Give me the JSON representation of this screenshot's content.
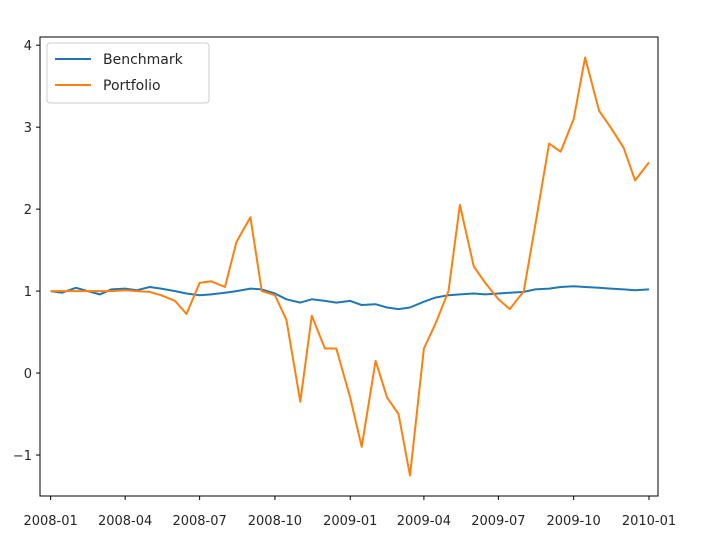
{
  "chart_data": {
    "type": "line",
    "title": "",
    "xlabel": "",
    "ylabel": "",
    "xlim": [
      "2007-12-19",
      "2010-01-12"
    ],
    "ylim": [
      -1.5,
      4.1
    ],
    "grid": false,
    "legend_position": "top-left",
    "x_tick_labels": [
      "2008-01",
      "2008-04",
      "2008-07",
      "2008-10",
      "2009-01",
      "2009-04",
      "2009-07",
      "2009-10",
      "2010-01"
    ],
    "x_tick_dates": [
      "2008-01-01",
      "2008-04-01",
      "2008-07-01",
      "2008-10-01",
      "2009-01-01",
      "2009-04-01",
      "2009-07-01",
      "2009-10-01",
      "2010-01-01"
    ],
    "y_tick_labels": [
      "−1",
      "0",
      "1",
      "2",
      "3",
      "4"
    ],
    "y_tick_values": [
      -1,
      0,
      1,
      2,
      3,
      4
    ],
    "x": [
      "2008-01-01",
      "2008-01-15",
      "2008-02-01",
      "2008-02-15",
      "2008-03-01",
      "2008-03-15",
      "2008-04-01",
      "2008-04-15",
      "2008-05-01",
      "2008-05-15",
      "2008-06-01",
      "2008-06-15",
      "2008-07-01",
      "2008-07-15",
      "2008-08-01",
      "2008-08-15",
      "2008-09-01",
      "2008-09-15",
      "2008-10-01",
      "2008-10-15",
      "2008-11-01",
      "2008-11-15",
      "2008-12-01",
      "2008-12-15",
      "2009-01-01",
      "2009-01-15",
      "2009-02-01",
      "2009-02-15",
      "2009-03-01",
      "2009-03-15",
      "2009-04-01",
      "2009-04-15",
      "2009-05-01",
      "2009-05-15",
      "2009-06-01",
      "2009-06-15",
      "2009-07-01",
      "2009-07-15",
      "2009-08-01",
      "2009-08-15",
      "2009-09-01",
      "2009-09-15",
      "2009-10-01",
      "2009-10-15",
      "2009-11-01",
      "2009-11-15",
      "2009-12-01",
      "2009-12-15",
      "2010-01-01"
    ],
    "series": [
      {
        "name": "Benchmark",
        "color": "#1f77b4",
        "values": [
          1.0,
          0.98,
          1.04,
          1.0,
          0.96,
          1.02,
          1.03,
          1.01,
          1.05,
          1.03,
          1.0,
          0.97,
          0.95,
          0.96,
          0.98,
          1.0,
          1.03,
          1.02,
          0.97,
          0.9,
          0.86,
          0.9,
          0.88,
          0.86,
          0.88,
          0.83,
          0.84,
          0.8,
          0.78,
          0.8,
          0.87,
          0.92,
          0.95,
          0.96,
          0.97,
          0.96,
          0.97,
          0.98,
          0.99,
          1.02,
          1.03,
          1.05,
          1.06,
          1.05,
          1.04,
          1.03,
          1.02,
          1.01,
          1.02
        ]
      },
      {
        "name": "Portfolio",
        "color": "#ff7f0e",
        "values": [
          1.0,
          1.0,
          1.0,
          1.0,
          1.0,
          1.0,
          1.01,
          1.0,
          0.99,
          0.95,
          0.88,
          0.72,
          1.1,
          1.12,
          1.05,
          1.6,
          1.9,
          1.0,
          0.95,
          0.65,
          -0.35,
          0.7,
          0.3,
          0.3,
          -0.3,
          -0.9,
          0.15,
          -0.3,
          -0.5,
          -1.25,
          0.3,
          0.6,
          1.0,
          2.05,
          1.3,
          1.1,
          0.9,
          0.78,
          1.0,
          1.8,
          2.8,
          2.7,
          3.1,
          3.85,
          3.2,
          3.0,
          2.75,
          2.35,
          2.57
        ]
      }
    ]
  }
}
